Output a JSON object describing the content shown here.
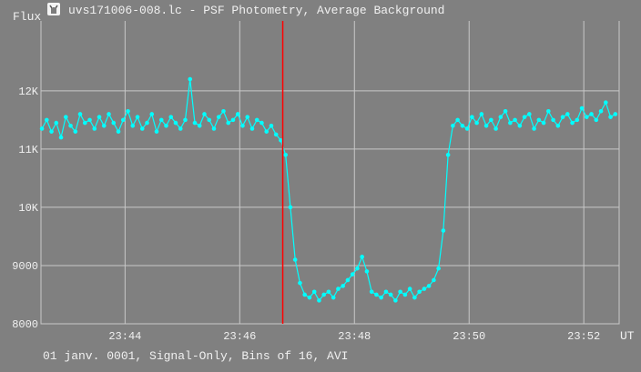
{
  "window": {
    "title": "uvs171006-008.lc - PSF Photometry, Average Background",
    "icon": "lightcurve-app-icon"
  },
  "footer": {
    "text": "01 janv. 0001, Signal-Only, Bins of 16, AVI"
  },
  "chart_data": {
    "type": "scatter",
    "ylabel": "Flux",
    "xlabel": "UT",
    "ylim": [
      8000,
      13200
    ],
    "xlim": [
      "23:42:32",
      "23:52:37"
    ],
    "y_ticks": [
      {
        "value": 8000,
        "label": "8000"
      },
      {
        "value": 9000,
        "label": "9000"
      },
      {
        "value": 10000,
        "label": "10K"
      },
      {
        "value": 11000,
        "label": "11K"
      },
      {
        "value": 12000,
        "label": "12K"
      }
    ],
    "x_ticks": [
      "23:44",
      "23:46",
      "23:48",
      "23:50",
      "23:52"
    ],
    "grid": true,
    "marker_line": {
      "time": "23:46:45",
      "color": "#ff0000"
    },
    "series_color": "#00ffff",
    "x_start": "23:42:33",
    "x_step_seconds": 5,
    "values": [
      11350,
      11500,
      11300,
      11450,
      11200,
      11550,
      11400,
      11300,
      11600,
      11450,
      11500,
      11350,
      11550,
      11400,
      11600,
      11450,
      11300,
      11500,
      11650,
      11400,
      11550,
      11350,
      11450,
      11600,
      11300,
      11500,
      11400,
      11550,
      11450,
      11350,
      11500,
      12200,
      11450,
      11400,
      11600,
      11500,
      11350,
      11550,
      11650,
      11450,
      11500,
      11600,
      11400,
      11550,
      11350,
      11500,
      11450,
      11300,
      11400,
      11250,
      11150,
      10900,
      10000,
      9100,
      8700,
      8500,
      8450,
      8550,
      8400,
      8500,
      8550,
      8450,
      8600,
      8650,
      8750,
      8850,
      8950,
      9150,
      8900,
      8550,
      8500,
      8450,
      8550,
      8500,
      8400,
      8550,
      8500,
      8600,
      8450,
      8550,
      8600,
      8650,
      8750,
      8950,
      9600,
      10900,
      11400,
      11500,
      11400,
      11350,
      11550,
      11450,
      11600,
      11400,
      11500,
      11350,
      11550,
      11650,
      11450,
      11500,
      11400,
      11550,
      11600,
      11350,
      11500,
      11450,
      11650,
      11500,
      11400,
      11550,
      11600,
      11450,
      11500,
      11700,
      11550,
      11600,
      11500,
      11650,
      11800,
      11550,
      11600
    ]
  }
}
